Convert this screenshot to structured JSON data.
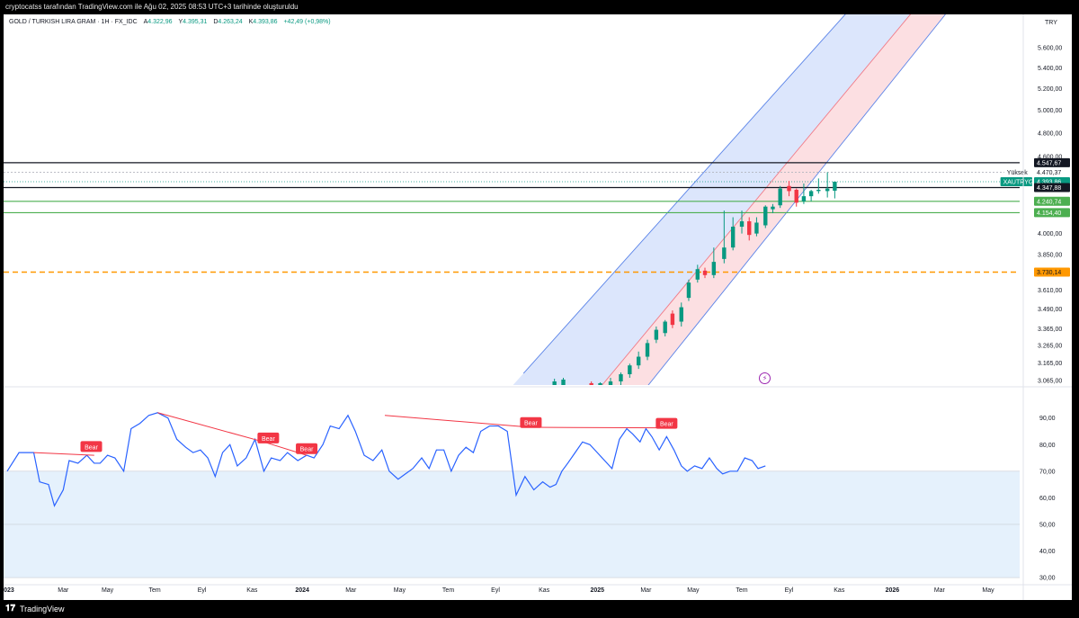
{
  "header": {
    "attribution": "cryptocatss tarafından TradingView.com ile Ağu 02, 2025 08:53 UTC+3 tarihinde oluşturuldu"
  },
  "legend": {
    "symbol": "GOLD / TURKISH LIRA GRAM · 1H · FX_IDC",
    "open_label": "A",
    "open": "4.322,96",
    "high_label": "Y",
    "high": "4.395,31",
    "low_label": "D",
    "low": "4.263,24",
    "close_label": "K",
    "close": "4.393,86",
    "change": "+42,49 (+0,98%)"
  },
  "footer": {
    "logo": "𝟏𝟕",
    "brand": "TradingView"
  },
  "colors": {
    "up": "#089981",
    "down": "#f23645",
    "rsi_line": "#2962ff",
    "channel_upper_fill": "#d6e2fb",
    "channel_lower_fill": "#fbd9dd",
    "support_green": "#4caf50",
    "dashed_orange": "#ff9800",
    "rsi_band": "#e5f1fc"
  },
  "chart_data": [
    {
      "type": "candlestick",
      "title": "GOLD / TURKISH LIRA GRAM · 1H · FX_IDC",
      "currency": "TRY",
      "y_scale": "log",
      "ylim": [
        3040,
        5950
      ],
      "y_ticks": [
        "5.600,00",
        "5.400,00",
        "5.200,00",
        "5.000,00",
        "4.800,00",
        "4.600,00",
        "4.000,00",
        "3.850,00",
        "3.610,00",
        "3.490,00",
        "3.365,00",
        "3.265,00",
        "3.165,00",
        "3.065,00"
      ],
      "y_tick_values": [
        5600,
        5400,
        5200,
        5000,
        4800,
        4600,
        4000,
        3850,
        3610,
        3490,
        3365,
        3265,
        3165,
        3065
      ],
      "xlim": [
        0,
        32.2
      ],
      "candles": [
        {
          "t": 18.55,
          "o": 3020,
          "h": 3075,
          "l": 3000,
          "c": 3060
        },
        {
          "t": 18.85,
          "o": 3040,
          "h": 3080,
          "l": 3030,
          "c": 3070
        },
        {
          "t": 19.8,
          "o": 3050,
          "h": 3060,
          "l": 3035,
          "c": 3040
        },
        {
          "t": 20.1,
          "o": 3020,
          "h": 3055,
          "l": 3000,
          "c": 3050
        },
        {
          "t": 20.45,
          "o": 3040,
          "h": 3080,
          "l": 3020,
          "c": 3060
        },
        {
          "t": 20.8,
          "o": 3060,
          "h": 3110,
          "l": 3040,
          "c": 3100
        },
        {
          "t": 21.1,
          "o": 3100,
          "h": 3160,
          "l": 3080,
          "c": 3150
        },
        {
          "t": 21.4,
          "o": 3150,
          "h": 3230,
          "l": 3130,
          "c": 3200
        },
        {
          "t": 21.7,
          "o": 3200,
          "h": 3300,
          "l": 3180,
          "c": 3280
        },
        {
          "t": 22.0,
          "o": 3300,
          "h": 3380,
          "l": 3280,
          "c": 3360
        },
        {
          "t": 22.3,
          "o": 3340,
          "h": 3420,
          "l": 3320,
          "c": 3410
        },
        {
          "t": 22.55,
          "o": 3460,
          "h": 3480,
          "l": 3370,
          "c": 3390
        },
        {
          "t": 22.85,
          "o": 3410,
          "h": 3530,
          "l": 3380,
          "c": 3500
        },
        {
          "t": 23.1,
          "o": 3560,
          "h": 3680,
          "l": 3540,
          "c": 3660
        },
        {
          "t": 23.4,
          "o": 3680,
          "h": 3780,
          "l": 3660,
          "c": 3750
        },
        {
          "t": 23.65,
          "o": 3740,
          "h": 3760,
          "l": 3690,
          "c": 3710
        },
        {
          "t": 23.95,
          "o": 3710,
          "h": 3900,
          "l": 3690,
          "c": 3800
        },
        {
          "t": 24.3,
          "o": 3820,
          "h": 4170,
          "l": 3790,
          "c": 3900
        },
        {
          "t": 24.6,
          "o": 3900,
          "h": 4120,
          "l": 3880,
          "c": 4050
        },
        {
          "t": 24.9,
          "o": 4050,
          "h": 4170,
          "l": 4000,
          "c": 4090
        },
        {
          "t": 25.15,
          "o": 4090,
          "h": 4120,
          "l": 3950,
          "c": 3990
        },
        {
          "t": 25.4,
          "o": 4000,
          "h": 4120,
          "l": 3980,
          "c": 4080
        },
        {
          "t": 25.7,
          "o": 4060,
          "h": 4210,
          "l": 4040,
          "c": 4200
        },
        {
          "t": 25.95,
          "o": 4180,
          "h": 4220,
          "l": 4150,
          "c": 4200
        },
        {
          "t": 26.2,
          "o": 4210,
          "h": 4360,
          "l": 4190,
          "c": 4340
        },
        {
          "t": 26.5,
          "o": 4360,
          "h": 4400,
          "l": 4280,
          "c": 4320
        },
        {
          "t": 26.75,
          "o": 4330,
          "h": 4340,
          "l": 4200,
          "c": 4230
        },
        {
          "t": 27.0,
          "o": 4240,
          "h": 4380,
          "l": 4220,
          "c": 4280
        },
        {
          "t": 27.25,
          "o": 4280,
          "h": 4330,
          "l": 4240,
          "c": 4320
        },
        {
          "t": 27.5,
          "o": 4320,
          "h": 4420,
          "l": 4300,
          "c": 4330
        },
        {
          "t": 27.8,
          "o": 4320,
          "h": 4470,
          "l": 4270,
          "c": 4340
        },
        {
          "t": 28.05,
          "o": 4323,
          "h": 4395,
          "l": 4263,
          "c": 4394
        }
      ],
      "horizontal_lines": [
        {
          "price": 4547.67,
          "label": "4.547,67",
          "style": "black"
        },
        {
          "price": 4470.37,
          "label": "4.470,37",
          "style": "high",
          "name": "Yüksek"
        },
        {
          "price": 4393.86,
          "label": "4.393,86",
          "style": "last",
          "name": "XAUTRYG"
        },
        {
          "price": 4347.88,
          "label": "4.347,88",
          "style": "black"
        },
        {
          "price": 4240.74,
          "label": "4.240,74",
          "style": "green"
        },
        {
          "price": 4154.4,
          "label": "4.154,40",
          "style": "green"
        },
        {
          "price": 3730.14,
          "label": "3.730,14",
          "style": "orange-dashed"
        }
      ],
      "channel": {
        "upper": [
          [
            17.5,
            3105
          ],
          [
            31.25,
            7050
          ]
        ],
        "middle": [
          [
            19.7,
            2950
          ],
          [
            31.0,
            6100
          ]
        ],
        "lower": [
          [
            20.5,
            2800
          ],
          [
            31.8,
            5950
          ]
        ]
      }
    },
    {
      "type": "line",
      "title": "RSI",
      "ylim": [
        28,
        97
      ],
      "y_ticks": [
        "90,00",
        "80,00",
        "70,00",
        "60,00",
        "50,00",
        "40,00",
        "30,00"
      ],
      "y_tick_values": [
        90,
        80,
        70,
        60,
        50,
        40,
        30
      ],
      "band": [
        30,
        70
      ],
      "x_ticks": [
        "2023",
        "Mar",
        "May",
        "Tem",
        "Eyl",
        "Kas",
        "2024",
        "Mar",
        "May",
        "Tem",
        "Eyl",
        "Kas",
        "2025",
        "Mar",
        "May",
        "Tem",
        "Eyl",
        "Kas",
        "2026",
        "Mar",
        "May"
      ],
      "x_tick_values": [
        0,
        1.9,
        3.4,
        5.0,
        6.6,
        8.3,
        10.0,
        11.65,
        13.3,
        14.95,
        16.55,
        18.2,
        20.0,
        21.65,
        23.25,
        24.9,
        26.5,
        28.2,
        30.0,
        31.6,
        33.25
      ],
      "x": [
        0,
        0.4,
        0.9,
        1.1,
        1.4,
        1.6,
        1.9,
        2.1,
        2.4,
        2.7,
        2.95,
        3.15,
        3.4,
        3.65,
        3.95,
        4.2,
        4.5,
        4.8,
        5.1,
        5.45,
        5.75,
        6.05,
        6.3,
        6.55,
        6.8,
        7.05,
        7.3,
        7.55,
        7.8,
        8.1,
        8.4,
        8.7,
        8.95,
        9.25,
        9.5,
        9.85,
        10.15,
        10.4,
        10.7,
        10.95,
        11.25,
        11.55,
        11.8,
        12.1,
        12.4,
        12.7,
        12.95,
        13.25,
        13.5,
        13.75,
        14.05,
        14.3,
        14.55,
        14.8,
        15.05,
        15.3,
        15.55,
        15.8,
        16.05,
        16.35,
        16.65,
        16.95,
        17.25,
        17.55,
        17.85,
        18.15,
        18.4,
        18.6,
        18.8,
        19.0,
        19.25,
        19.5,
        19.75,
        20.0,
        20.25,
        20.5,
        20.75,
        21.0,
        21.2,
        21.45,
        21.65,
        21.85,
        22.1,
        22.35,
        22.6,
        22.85,
        23.05,
        23.3,
        23.55,
        23.8,
        24.05,
        24.25,
        24.5,
        24.75,
        25.0,
        25.25,
        25.45,
        25.7
      ],
      "values": [
        70,
        77,
        77,
        66,
        65,
        57,
        63,
        74,
        73,
        76,
        73,
        73,
        76,
        75,
        70,
        86,
        88,
        91,
        92,
        90,
        82,
        79,
        77,
        78,
        75,
        68,
        77,
        80,
        72,
        75,
        82,
        70,
        75,
        74,
        77,
        74,
        76,
        75,
        80,
        87,
        86,
        91,
        85,
        76,
        74,
        78,
        70,
        67,
        69,
        71,
        75,
        71,
        78,
        78,
        70,
        76,
        79,
        77,
        85,
        87,
        87,
        85,
        61,
        68,
        63,
        66,
        64,
        65,
        70,
        73,
        77,
        81,
        80,
        77,
        74,
        71,
        82,
        86,
        84,
        81,
        86,
        83,
        78,
        83,
        78,
        72,
        70,
        72,
        71,
        75,
        71,
        69,
        70,
        70,
        75,
        74,
        71,
        72
      ],
      "annotations": [
        {
          "text": "Bear",
          "x": 2.85,
          "y": 79.3,
          "line": [
            [
              0.9,
              77
            ],
            [
              2.95,
              76
            ]
          ]
        },
        {
          "text": "Bear",
          "x": 8.85,
          "y": 82.5,
          "line": [
            [
              5.1,
              92
            ],
            [
              8.7,
              81
            ]
          ]
        },
        {
          "text": "Bear",
          "x": 10.15,
          "y": 78.5,
          "line": [
            [
              8.7,
              81
            ],
            [
              10.15,
              76
            ]
          ]
        },
        {
          "text": "Bear",
          "x": 17.75,
          "y": 88.3,
          "line": [
            [
              12.8,
              91
            ],
            [
              17.75,
              86.5
            ]
          ]
        },
        {
          "text": "Bear",
          "x": 22.35,
          "y": 88.0,
          "line": [
            [
              17.75,
              86.5
            ],
            [
              22.35,
              86.3
            ]
          ]
        }
      ]
    }
  ]
}
